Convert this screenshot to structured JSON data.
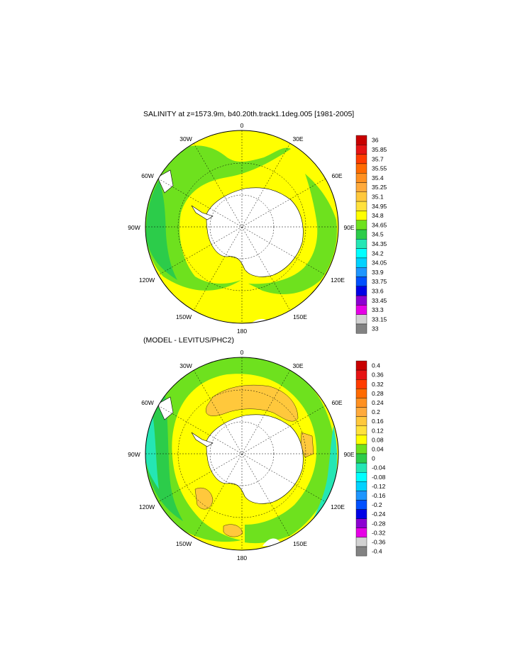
{
  "top_panel": {
    "title": "SALINITY at z=1573.9m, b40.20th.track1.1deg.005 [1981-2005]",
    "longitude_labels": [
      "0",
      "30E",
      "60E",
      "90E",
      "120E",
      "150E",
      "180",
      "150W",
      "120W",
      "90W",
      "60W",
      "30W"
    ],
    "colorbar": {
      "labels": [
        "36",
        "35.85",
        "35.7",
        "35.55",
        "35.4",
        "35.25",
        "35.1",
        "34.95",
        "34.8",
        "34.65",
        "34.5",
        "34.35",
        "34.2",
        "34.05",
        "33.9",
        "33.75",
        "33.6",
        "33.45",
        "33.3",
        "33.15",
        "33"
      ],
      "colors": [
        "#c80000",
        "#e61414",
        "#ff3c00",
        "#ff6a00",
        "#ff9020",
        "#ffaa3c",
        "#ffc83c",
        "#ffe13c",
        "#ffff00",
        "#6ee11e",
        "#2ccc4a",
        "#24e6b4",
        "#00ffff",
        "#00d2ff",
        "#1e96ff",
        "#0050ff",
        "#0000e6",
        "#8c00d2",
        "#e600e6",
        "#d2d2d2",
        "#828282"
      ]
    }
  },
  "bottom_panel": {
    "title": "(MODEL - LEVITUS/PHC2)",
    "longitude_labels": [
      "0",
      "30E",
      "60E",
      "90E",
      "120E",
      "150E",
      "180",
      "150W",
      "120W",
      "90W",
      "60W",
      "30W"
    ],
    "colorbar": {
      "labels": [
        "0.4",
        "0.36",
        "0.32",
        "0.28",
        "0.24",
        "0.2",
        "0.16",
        "0.12",
        "0.08",
        "0.04",
        "0",
        "-0.04",
        "-0.08",
        "-0.12",
        "-0.16",
        "-0.2",
        "-0.24",
        "-0.28",
        "-0.32",
        "-0.36",
        "-0.4"
      ],
      "colors": [
        "#c80000",
        "#e61414",
        "#ff3c00",
        "#ff6a00",
        "#ff9020",
        "#ffaa3c",
        "#ffc83c",
        "#ffe13c",
        "#ffff00",
        "#6ee11e",
        "#2ccc4a",
        "#24e6b4",
        "#00ffff",
        "#00d2ff",
        "#1e96ff",
        "#0050ff",
        "#0000e6",
        "#8c00d2",
        "#e600e6",
        "#d2d2d2",
        "#828282"
      ]
    }
  }
}
